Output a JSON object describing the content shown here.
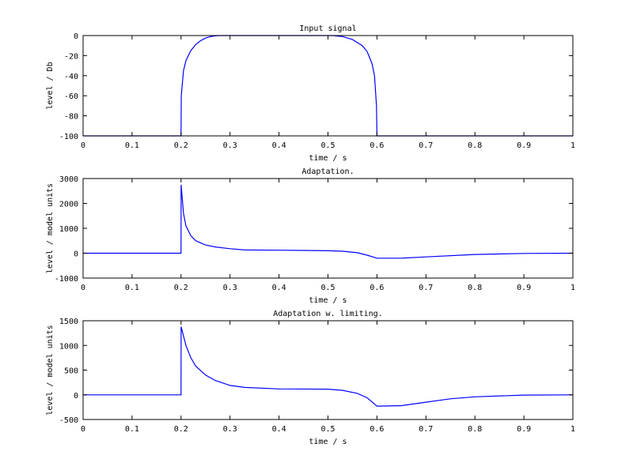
{
  "chart_data": [
    {
      "type": "line",
      "title": "Input signal",
      "xlabel": "time / s",
      "ylabel": "level / Db",
      "xlim": [
        0,
        1
      ],
      "ylim": [
        -100,
        0
      ],
      "xticks": [
        "0",
        "0.1",
        "0.2",
        "0.3",
        "0.4",
        "0.5",
        "0.6",
        "0.7",
        "0.8",
        "0.9",
        "1"
      ],
      "yticks": [
        "-100",
        "-80",
        "-60",
        "-40",
        "-20",
        "0"
      ],
      "color": "#0000ff",
      "x": [
        0,
        0.2,
        0.2005,
        0.205,
        0.21,
        0.22,
        0.23,
        0.24,
        0.25,
        0.26,
        0.27,
        0.28,
        0.51,
        0.53,
        0.55,
        0.57,
        0.58,
        0.59,
        0.595,
        0.599,
        0.6,
        1
      ],
      "y": [
        -100,
        -100,
        -60,
        -35,
        -25,
        -15,
        -9,
        -5,
        -2.5,
        -1,
        -0.3,
        0,
        0,
        -1,
        -4,
        -10,
        -16,
        -28,
        -40,
        -70,
        -100,
        -100
      ]
    },
    {
      "type": "line",
      "title": "Adaptation.",
      "xlabel": "time / s",
      "ylabel": "level / model units",
      "xlim": [
        0,
        1
      ],
      "ylim": [
        -1000,
        3000
      ],
      "xticks": [
        "0",
        "0.1",
        "0.2",
        "0.3",
        "0.4",
        "0.5",
        "0.6",
        "0.7",
        "0.8",
        "0.9",
        "1"
      ],
      "yticks": [
        "-1000",
        "0",
        "1000",
        "2000",
        "3000"
      ],
      "color": "#0000ff",
      "x": [
        0,
        0.2,
        0.2001,
        0.205,
        0.21,
        0.22,
        0.23,
        0.25,
        0.27,
        0.3,
        0.33,
        0.4,
        0.45,
        0.5,
        0.53,
        0.56,
        0.58,
        0.6,
        0.65,
        0.7,
        0.8,
        0.9,
        1
      ],
      "y": [
        0,
        0,
        2750,
        1600,
        1100,
        700,
        500,
        330,
        250,
        180,
        130,
        120,
        110,
        100,
        80,
        20,
        -80,
        -200,
        -200,
        -150,
        -50,
        -10,
        0
      ]
    },
    {
      "type": "line",
      "title": "Adaptation w. limiting.",
      "xlabel": "time / s",
      "ylabel": "level / model units",
      "xlim": [
        0,
        1
      ],
      "ylim": [
        -500,
        1500
      ],
      "xticks": [
        "0",
        "0.1",
        "0.2",
        "0.3",
        "0.4",
        "0.5",
        "0.6",
        "0.7",
        "0.8",
        "0.9",
        "1"
      ],
      "yticks": [
        "-500",
        "0",
        "500",
        "1000",
        "1500"
      ],
      "color": "#0000ff",
      "x": [
        0,
        0.2,
        0.2001,
        0.21,
        0.22,
        0.23,
        0.25,
        0.27,
        0.3,
        0.33,
        0.4,
        0.5,
        0.53,
        0.56,
        0.58,
        0.6,
        0.65,
        0.7,
        0.75,
        0.8,
        0.9,
        1
      ],
      "y": [
        0,
        0,
        1380,
        1000,
        750,
        580,
        400,
        290,
        190,
        150,
        120,
        115,
        90,
        30,
        -60,
        -230,
        -220,
        -150,
        -80,
        -40,
        -5,
        0
      ]
    }
  ]
}
